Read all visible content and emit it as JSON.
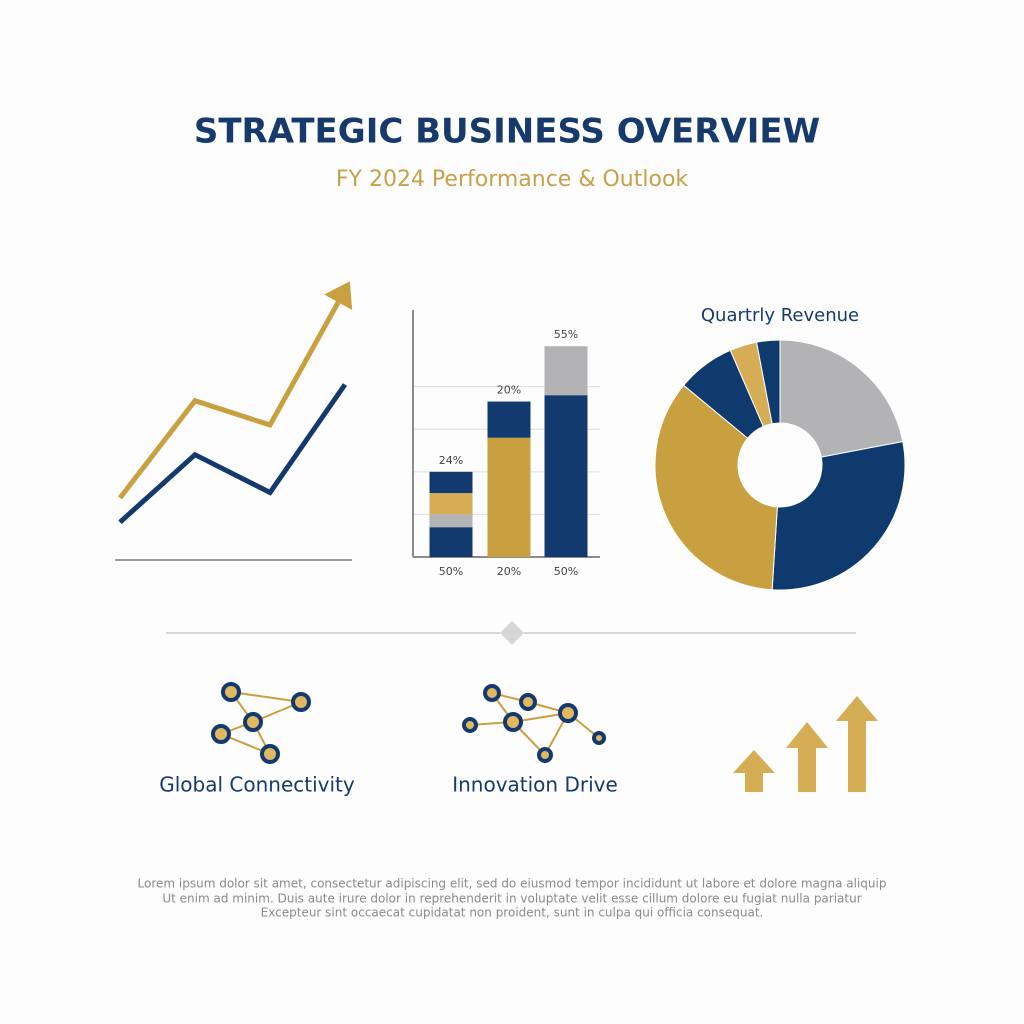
{
  "header": {
    "title": "STRATEGIC BUSINESS OVERVIEW",
    "subtitle": "FY 2024 Performance & Outlook"
  },
  "chart_data": [
    {
      "type": "line",
      "categories": [
        null,
        null,
        null,
        null
      ],
      "ylim": [
        0,
        100
      ],
      "arrow": true,
      "series": [
        {
          "color": "#c9a040",
          "values": [
            23,
            59,
            50,
            100
          ]
        },
        {
          "color": "#133a6e",
          "values": [
            14,
            39,
            25,
            65
          ]
        }
      ]
    },
    {
      "type": "stacked-bar",
      "categories": [
        "50%",
        "20%",
        "50%"
      ],
      "bar_labels": [
        "24%",
        "20%",
        "55%"
      ],
      "ylim": [
        0,
        5.8
      ],
      "yticks": [
        1,
        2,
        3,
        4
      ],
      "grid": true,
      "stacks": [
        [
          {
            "value": 0.7,
            "color": "#133a6e"
          },
          {
            "value": 0.3,
            "color": "#b3b3b5"
          },
          {
            "value": 0.5,
            "color": "#d4ad55"
          },
          {
            "value": 0.5,
            "color": "#133a6e"
          }
        ],
        [
          {
            "value": 2.8,
            "color": "#c9a040"
          },
          {
            "value": 0.85,
            "color": "#133a6e"
          }
        ],
        [
          {
            "value": 3.8,
            "color": "#133a6e"
          },
          {
            "value": 1.15,
            "color": "#b3b3b5"
          }
        ]
      ]
    },
    {
      "type": "donut",
      "title": "Quartrly Revenue",
      "values": [
        22,
        29,
        35,
        7.5,
        3.5,
        3
      ],
      "colors": [
        "#b3b3b5",
        "#0f3a6e",
        "#c9a040",
        "#0f3a6e",
        "#d4ad55",
        "#0f3a6e"
      ]
    }
  ],
  "features": [
    {
      "label": "Global Connectivity"
    },
    {
      "label": "Innovation Drive"
    }
  ],
  "footer": {
    "lines": [
      "Lorem ipsum dolor sit amet, consectetur adipiscing elit, sed do eiusmod tempor incididunt ut labore et dolore magna aliquip",
      "Ut enim ad minim. Duis aute irure dolor in reprehenderit in voluptate velit esse cillum dolore eu fugiat nulla pariatur",
      "Excepteur sint occaecat cupidatat non proident, sunt in culpa qui officia consequat."
    ]
  }
}
